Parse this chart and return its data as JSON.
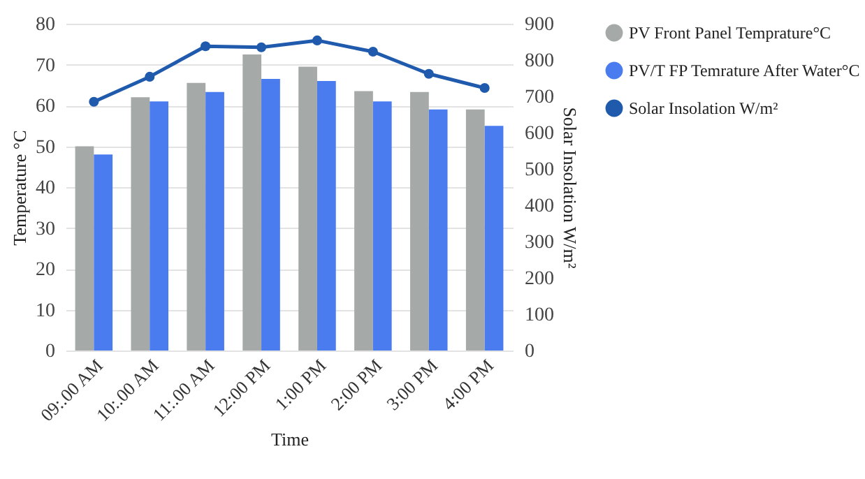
{
  "chart_data": {
    "type": "bar",
    "xlabel": "Time",
    "ylabel": "Temperature °C",
    "y2label": "Solar Insolation W/m²",
    "categories": [
      "09:.00 AM",
      "10:.00 AM",
      "11:.00 AM",
      "12:00 PM",
      "1:00 PM",
      "2:00 PM",
      "3:00 PM",
      "4:00 PM"
    ],
    "series": [
      {
        "name": "PV Front Panel Temprature°C",
        "color": "#a5a9a8",
        "values": [
          50,
          62,
          65.5,
          72.5,
          69.5,
          63.5,
          63.3,
          59
        ]
      },
      {
        "name": "PV/T FP Temrature After Water°C",
        "color": "#4a7cf0",
        "values": [
          48,
          61,
          63.3,
          66.5,
          66,
          61,
          59,
          55
        ]
      },
      {
        "name": "Solar Insolation W/m²",
        "type": "line",
        "axis": "y2",
        "color": "#1f5aad",
        "values": [
          685,
          754,
          838,
          835,
          854,
          823,
          762,
          723
        ]
      }
    ],
    "ylim": [
      0,
      80
    ],
    "yticks": [
      0,
      10,
      20,
      30,
      40,
      50,
      60,
      70,
      80
    ],
    "y2lim": [
      0,
      900
    ],
    "y2ticks": [
      0,
      100,
      200,
      300,
      400,
      500,
      600,
      700,
      800,
      900
    ],
    "grid": "y",
    "legend": "right",
    "marker": "circle",
    "line_style": "solid"
  }
}
